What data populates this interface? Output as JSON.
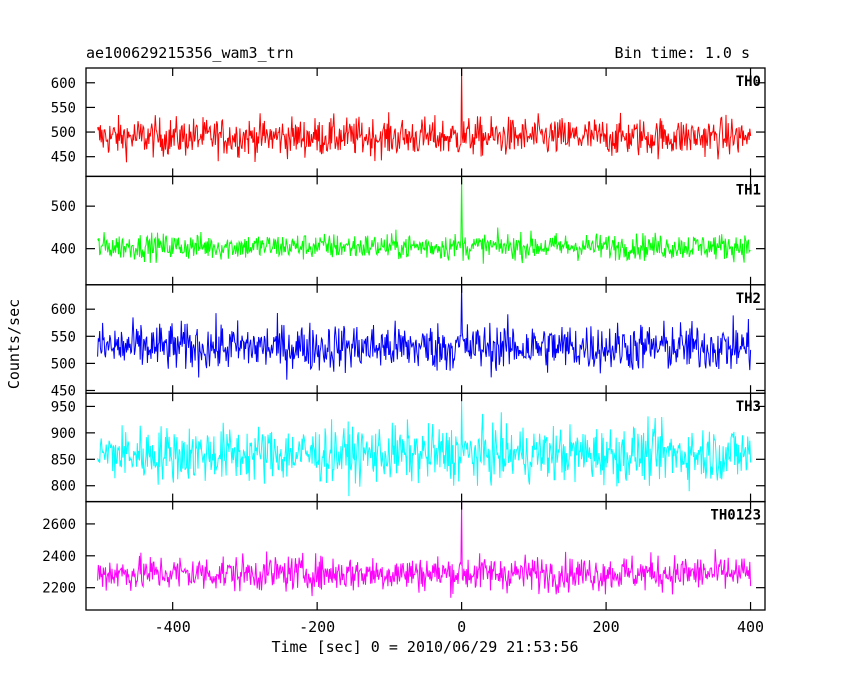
{
  "header": {
    "title": "ae100629215356_wam3_trn",
    "bin_time": "Bin time: 1.0 s"
  },
  "chart_data": {
    "type": "line",
    "xlabel": "Time [sec] 0 = 2010/06/29 21:53:56",
    "ylabel": "Counts/sec",
    "xlim": [
      -520,
      420
    ],
    "x_ticks": [
      -400,
      -200,
      0,
      200,
      400
    ],
    "x_range": [
      -504,
      400
    ],
    "panels": [
      {
        "name": "TH0",
        "color": "#ff0000",
        "ylim": [
          410,
          630
        ],
        "yticks": [
          450,
          500,
          550,
          600
        ],
        "mean": 490,
        "spread": 28,
        "spike": 630
      },
      {
        "name": "TH1",
        "color": "#00ff00",
        "ylim": [
          315,
          570
        ],
        "yticks": [
          400,
          500
        ],
        "mean": 405,
        "spread": 22,
        "spike": 570
      },
      {
        "name": "TH2",
        "color": "#0000ff",
        "ylim": [
          445,
          645
        ],
        "yticks": [
          450,
          500,
          550,
          600
        ],
        "mean": 530,
        "spread": 32,
        "spike": 645
      },
      {
        "name": "TH3",
        "color": "#00ffff",
        "ylim": [
          770,
          975
        ],
        "yticks": [
          800,
          850,
          900,
          950
        ],
        "mean": 860,
        "spread": 38,
        "spike": 960
      },
      {
        "name": "TH0123",
        "color": "#ff00ff",
        "ylim": [
          2060,
          2740
        ],
        "yticks": [
          2200,
          2400,
          2600
        ],
        "mean": 2290,
        "spread": 80,
        "spike": 2740
      }
    ]
  }
}
